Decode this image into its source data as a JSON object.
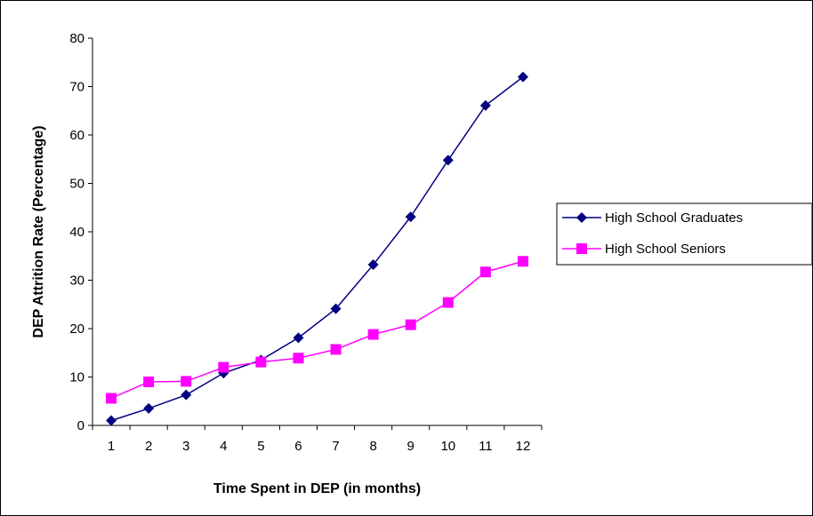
{
  "chart_data": {
    "type": "line",
    "title": "",
    "xlabel": "Time Spent in DEP (in months)",
    "ylabel": "DEP Attrition Rate (Percentage)",
    "x": [
      1,
      2,
      3,
      4,
      5,
      6,
      7,
      8,
      9,
      10,
      11,
      12
    ],
    "ylim": [
      0,
      80
    ],
    "yticks": [
      0,
      10,
      20,
      30,
      40,
      50,
      60,
      70,
      80
    ],
    "grid": false,
    "legend_position": "right",
    "series": [
      {
        "name": "High School Graduates",
        "color": "#000080",
        "marker": "diamond",
        "values": [
          1,
          3.5,
          6.3,
          10.8,
          13.5,
          18.1,
          24.1,
          33.2,
          43.1,
          54.8,
          66.1,
          72.0
        ]
      },
      {
        "name": "High School Seniors",
        "color": "#ff00ff",
        "marker": "square",
        "values": [
          5.6,
          9.0,
          9.1,
          12.0,
          13.1,
          13.9,
          15.7,
          18.8,
          20.8,
          25.4,
          31.7,
          33.9
        ]
      }
    ]
  }
}
